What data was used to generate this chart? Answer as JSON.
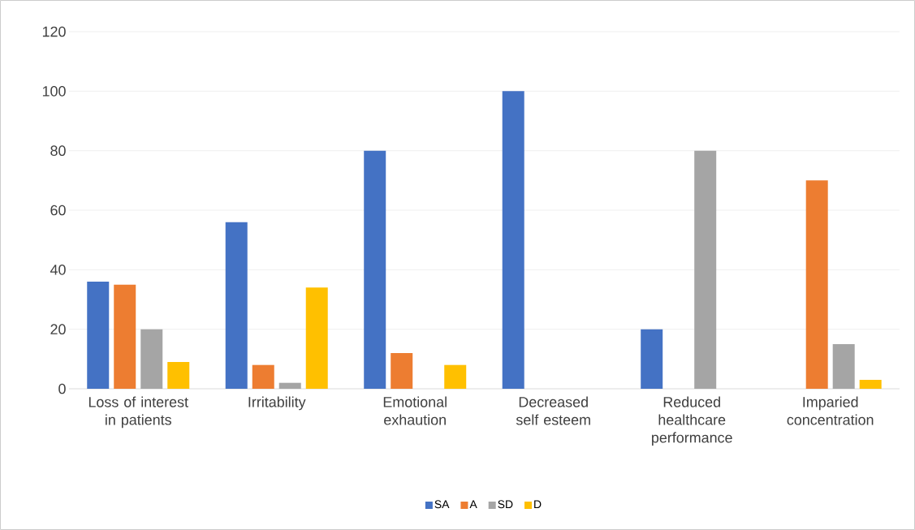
{
  "chart_data": {
    "type": "bar",
    "categories": [
      "Loss of interest in patients",
      "Irritability",
      "Emotional exhaution",
      "Decreased self esteem",
      "Reduced healthcare performance",
      "Imparied concentration"
    ],
    "series": [
      {
        "name": "SA",
        "color": "#4472c4",
        "values": [
          36,
          56,
          80,
          100,
          20,
          0
        ]
      },
      {
        "name": "A",
        "color": "#ed7d31",
        "values": [
          35,
          8,
          12,
          0,
          0,
          70
        ]
      },
      {
        "name": "SD",
        "color": "#a5a5a5",
        "values": [
          20,
          2,
          0,
          0,
          80,
          15
        ]
      },
      {
        "name": "D",
        "color": "#ffc000",
        "values": [
          9,
          34,
          8,
          0,
          0,
          3
        ]
      }
    ],
    "ylim": [
      0,
      120
    ],
    "yticks": [
      0,
      20,
      40,
      60,
      80,
      100,
      120
    ],
    "grid": "y",
    "legend": "bottom"
  }
}
